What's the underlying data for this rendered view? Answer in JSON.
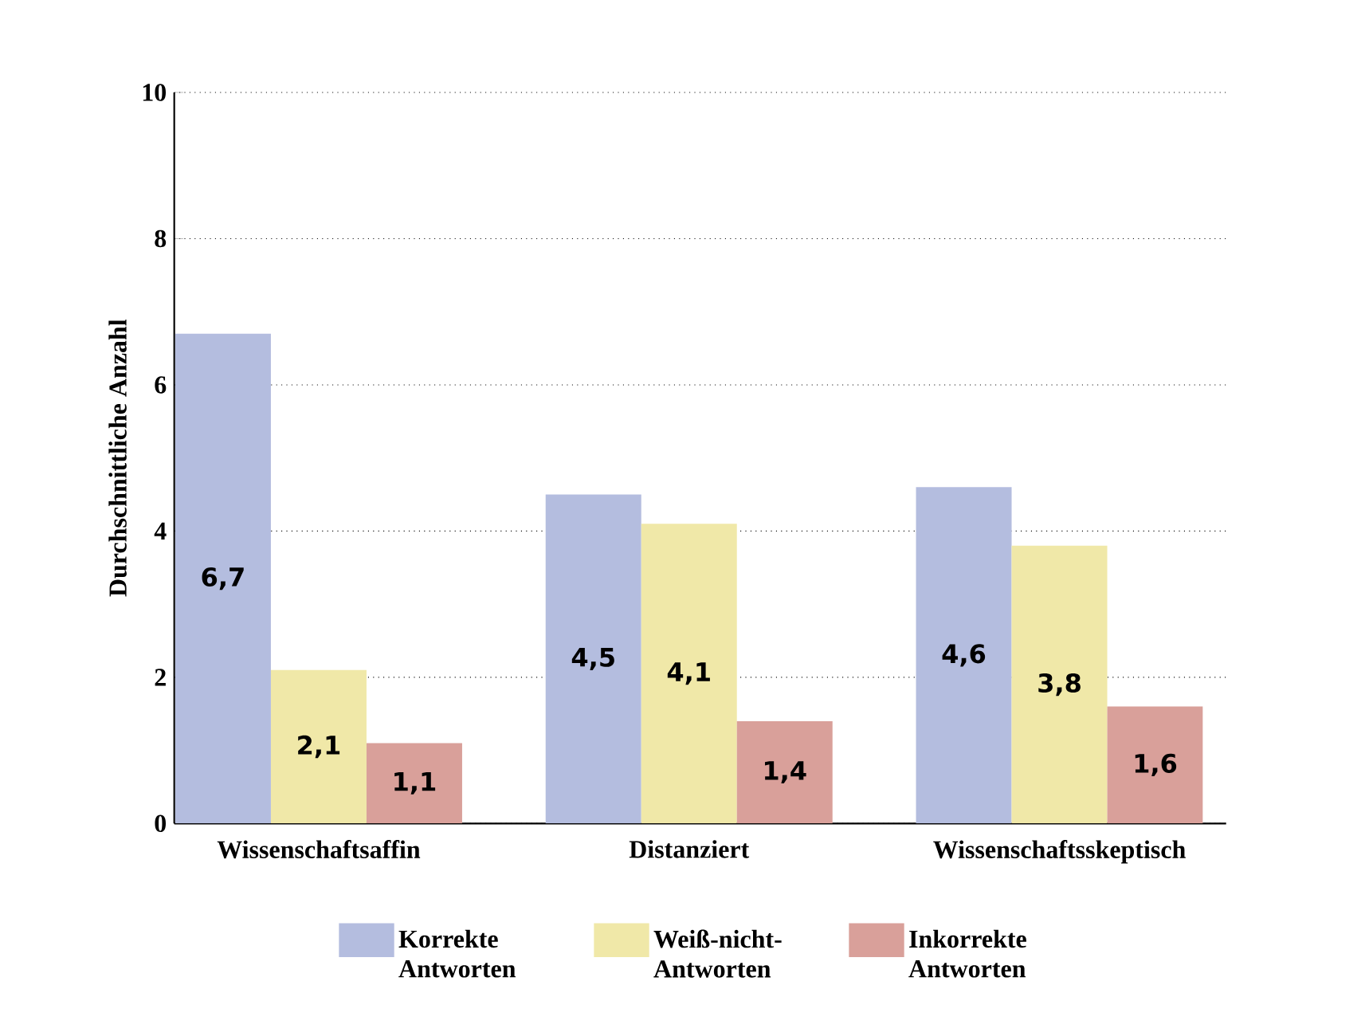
{
  "chart_data": {
    "type": "bar",
    "ylabel": "Durchschnittliche Anzahl",
    "categories": [
      "Wissenschaftsaffin",
      "Distanziert",
      "Wissenschaftsskeptisch"
    ],
    "series": [
      {
        "name": "Korrekte Antworten",
        "color": "#b4bddf",
        "values": [
          6.7,
          4.5,
          4.6
        ],
        "value_labels": [
          "6,7",
          "4,5",
          "4,6"
        ]
      },
      {
        "name": "Weiß-nicht-Antworten",
        "color": "#f0e8a8",
        "values": [
          2.1,
          4.1,
          3.8
        ],
        "value_labels": [
          "2,1",
          "4,1",
          "3,8"
        ]
      },
      {
        "name": "Inkorrekte Antworten",
        "color": "#d9a09a",
        "values": [
          1.1,
          1.4,
          1.6
        ],
        "value_labels": [
          "1,1",
          "1,4",
          "1,6"
        ]
      }
    ],
    "ylim": [
      0,
      10
    ],
    "yticks": [
      0,
      2,
      4,
      6,
      8,
      10
    ],
    "grid": "y",
    "legend": "bottom"
  }
}
